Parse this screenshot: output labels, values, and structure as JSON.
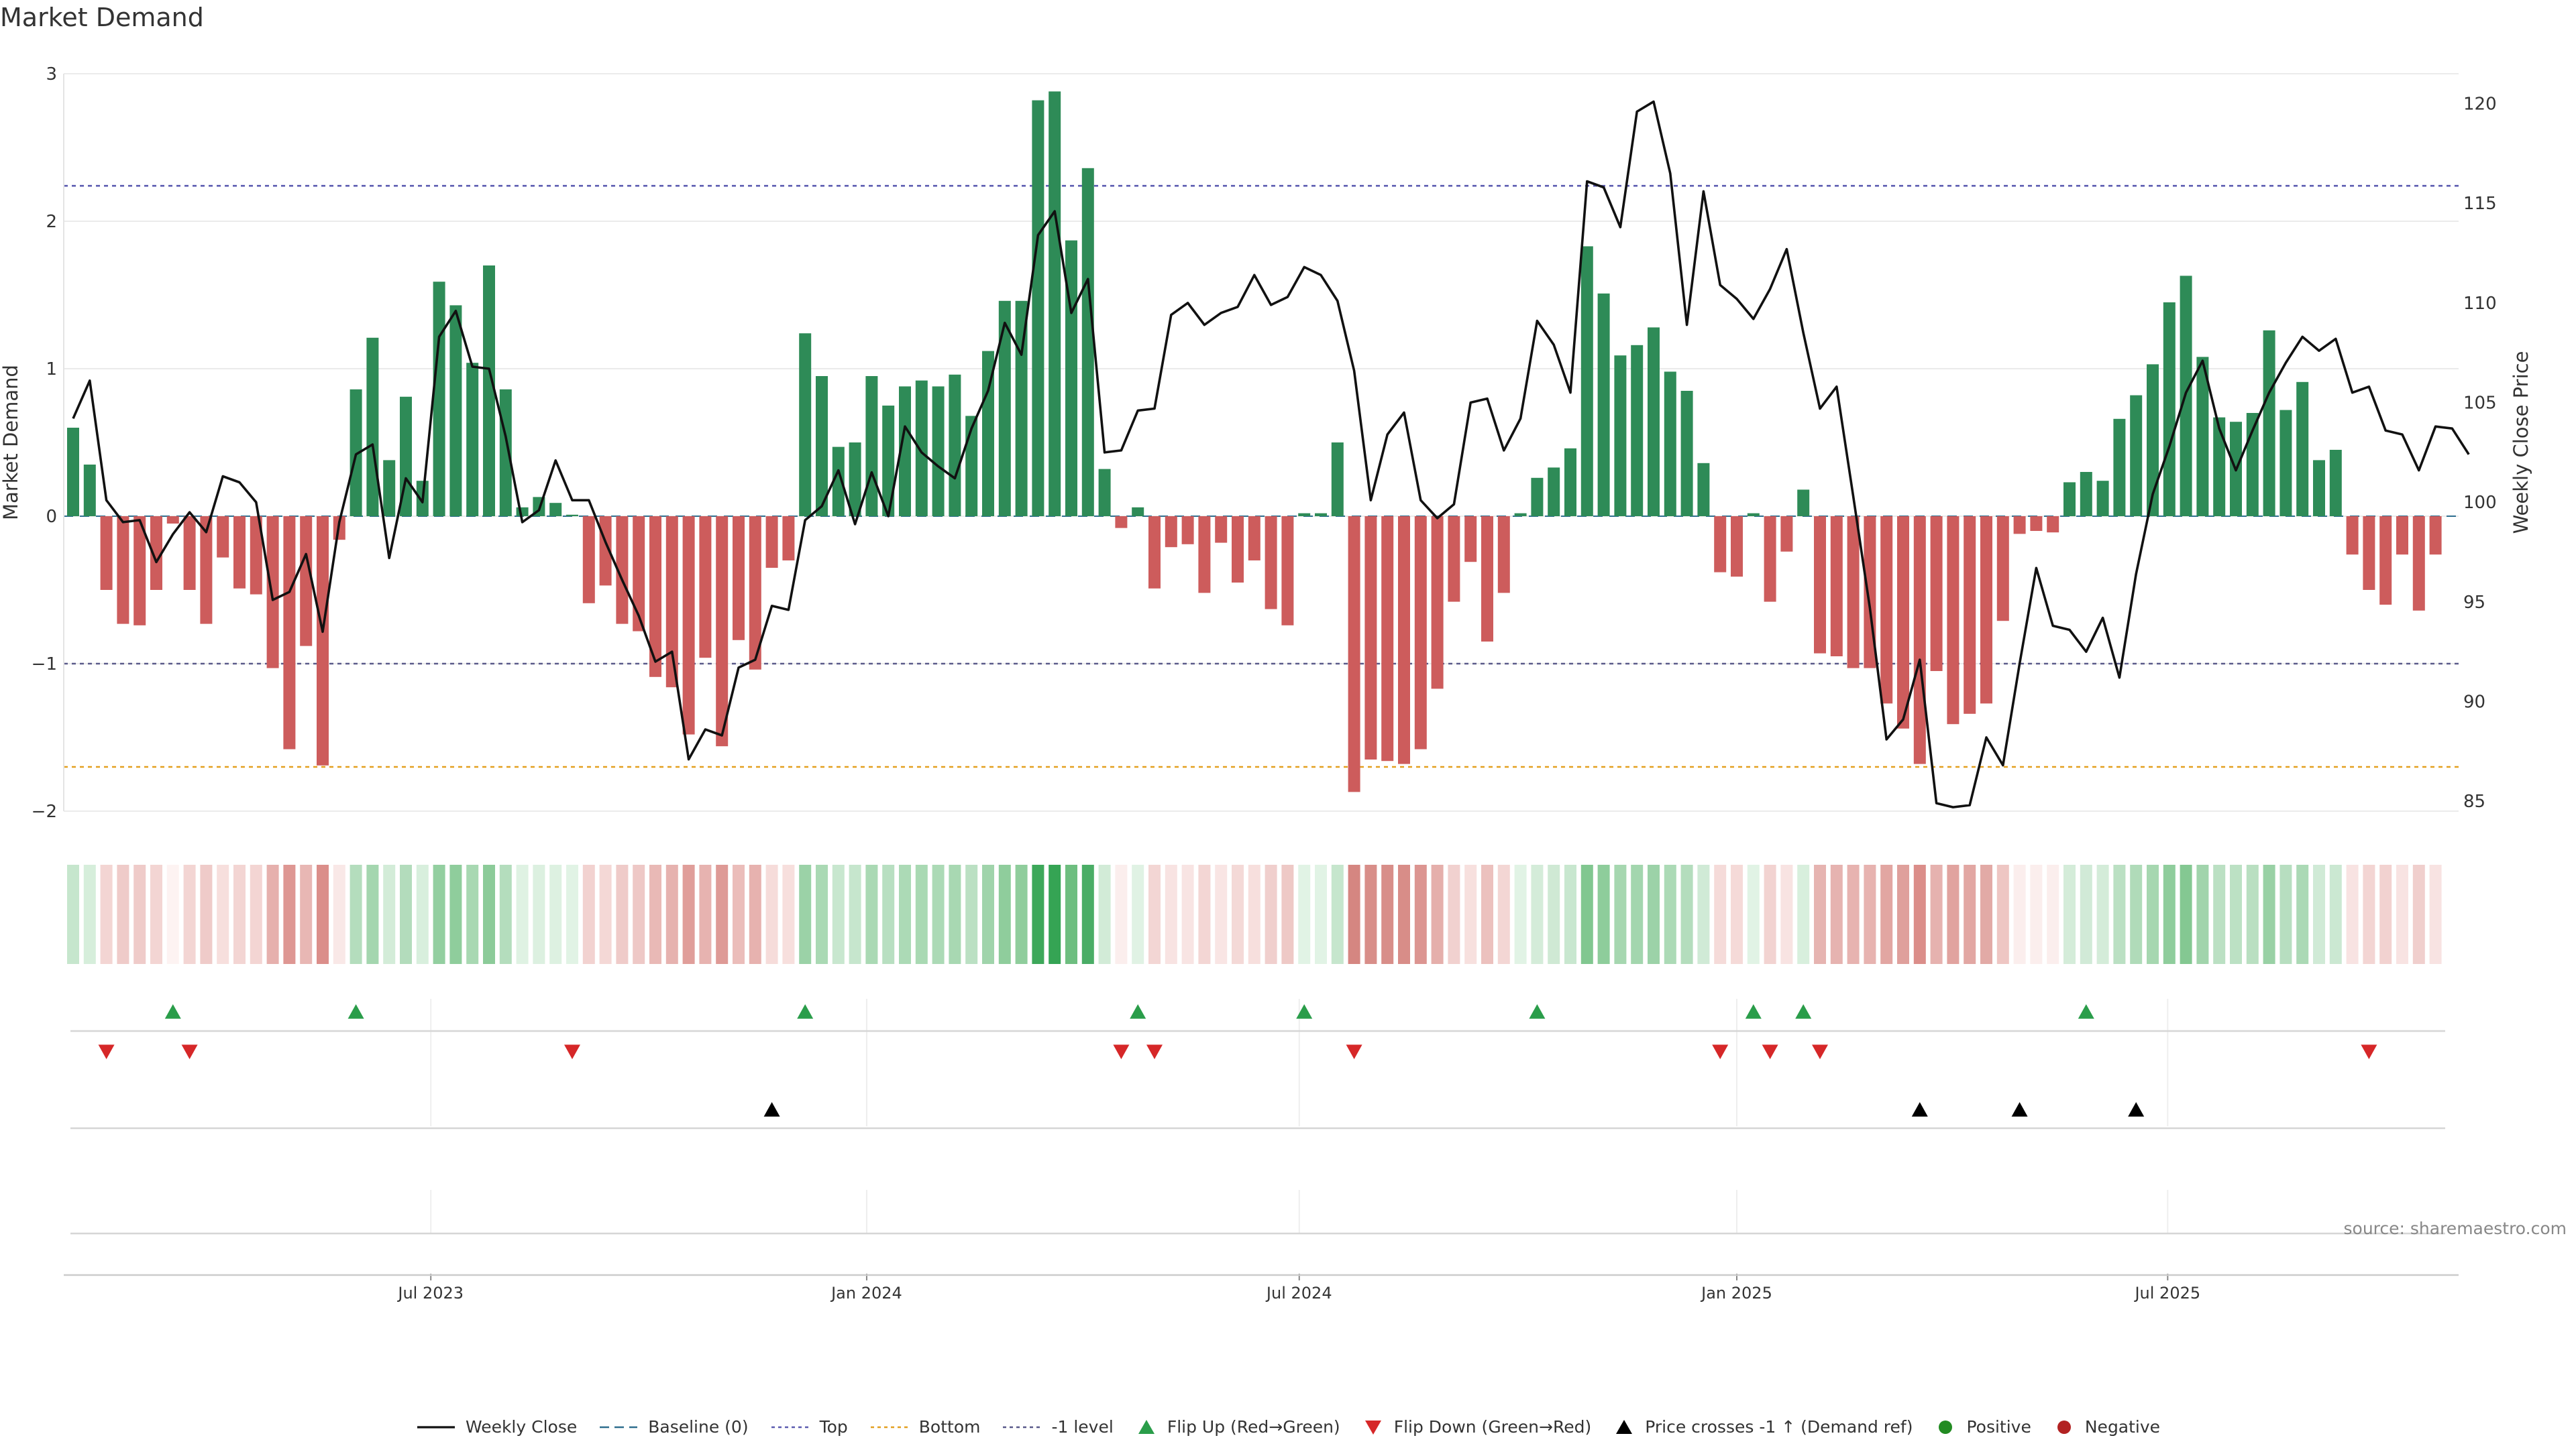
{
  "title": "Market Demand",
  "source": "source: sharemaestro.com",
  "colors": {
    "positive": "#2e8b57",
    "negative": "#cd5c5c",
    "price": "#111111",
    "top_line": "#5b5bb0",
    "bottom_line": "#e3a020",
    "minus1_line": "#5a5a8a",
    "flip_up": "#2a9d4a",
    "flip_down": "#d62728",
    "cross": "#000000",
    "positive_dot": "#228b22",
    "negative_dot": "#b22222"
  },
  "chart_data": {
    "type": "bar",
    "title": "Market Demand",
    "ylabel": "Market Demand",
    "y2label": "Weekly Close Price",
    "ylim": [
      -2.0,
      3.0
    ],
    "y2lim": [
      84.5,
      121.5
    ],
    "yticks": [
      3,
      2,
      1,
      0,
      -1,
      -2
    ],
    "ytick_labels": [
      "3",
      "2",
      "1",
      "0",
      "−1",
      "−2"
    ],
    "y2ticks": [
      120,
      115,
      110,
      105,
      100,
      95,
      90,
      85
    ],
    "y2tick_labels": [
      "120",
      "115",
      "110",
      "105",
      "100",
      "95",
      "90",
      "85"
    ],
    "reference_lines": {
      "top": 2.24,
      "bottom": -1.7,
      "minus_one": -1.0,
      "baseline": 0
    },
    "xticks": [
      {
        "label": "Jul 2023",
        "index": 21.5
      },
      {
        "label": "Jan 2024",
        "index": 47.7
      },
      {
        "label": "Jul 2024",
        "index": 73.7
      },
      {
        "label": "Jan 2025",
        "index": 100.0
      },
      {
        "label": "Jul 2025",
        "index": 125.9
      }
    ],
    "demand": [
      0.6,
      0.35,
      -0.5,
      -0.73,
      -0.74,
      -0.5,
      -0.05,
      -0.5,
      -0.73,
      -0.28,
      -0.49,
      -0.53,
      -1.03,
      -1.58,
      -0.88,
      -1.69,
      -0.16,
      0.86,
      1.21,
      0.38,
      0.81,
      0.24,
      1.59,
      1.43,
      1.04,
      1.7,
      0.86,
      0.06,
      0.13,
      0.09,
      0.01,
      -0.59,
      -0.47,
      -0.73,
      -0.78,
      -1.09,
      -1.16,
      -1.48,
      -0.96,
      -1.56,
      -0.84,
      -1.04,
      -0.35,
      -0.3,
      1.24,
      0.95,
      0.47,
      0.5,
      0.95,
      0.75,
      0.88,
      0.92,
      0.88,
      0.96,
      0.68,
      1.12,
      1.46,
      1.46,
      2.82,
      2.88,
      1.87,
      2.36,
      0.32,
      -0.08,
      0.06,
      -0.49,
      -0.21,
      -0.19,
      -0.52,
      -0.18,
      -0.45,
      -0.3,
      -0.63,
      -0.74,
      0.02,
      0.02,
      0.5,
      -1.87,
      -1.65,
      -1.66,
      -1.68,
      -1.58,
      -1.17,
      -0.58,
      -0.31,
      -0.85,
      -0.52,
      0.02,
      0.26,
      0.33,
      0.46,
      1.83,
      1.51,
      1.09,
      1.16,
      1.28,
      0.98,
      0.85,
      0.36,
      -0.38,
      -0.41,
      0.02,
      -0.58,
      -0.24,
      0.18,
      -0.93,
      -0.95,
      -1.03,
      -1.03,
      -1.27,
      -1.44,
      -1.68,
      -1.05,
      -1.41,
      -1.34,
      -1.27,
      -0.71,
      -0.12,
      -0.1,
      -0.11,
      0.23,
      0.3,
      0.24,
      0.66,
      0.82,
      1.03,
      1.45,
      1.63,
      1.08,
      0.67,
      0.64,
      0.7,
      1.26,
      0.72,
      0.91,
      0.38,
      0.45,
      -0.26,
      -0.5,
      -0.6,
      -0.26,
      -0.64,
      -0.26
    ],
    "price": [
      104.2,
      106.1,
      100.1,
      99.0,
      99.1,
      97.0,
      98.4,
      99.5,
      98.5,
      101.3,
      101.0,
      100.0,
      95.1,
      95.5,
      97.4,
      93.5,
      99.0,
      102.4,
      102.9,
      97.2,
      101.2,
      100.0,
      108.3,
      109.6,
      106.8,
      106.7,
      103.3,
      99.0,
      99.6,
      102.1,
      100.1,
      100.1,
      98.0,
      96.1,
      94.3,
      92.0,
      92.5,
      87.1,
      88.6,
      88.3,
      91.7,
      92.1,
      94.8,
      94.6,
      99.1,
      99.8,
      101.6,
      98.9,
      101.5,
      99.3,
      103.8,
      102.5,
      101.8,
      101.2,
      103.7,
      105.6,
      109.0,
      107.4,
      113.4,
      114.6,
      109.5,
      111.2,
      102.5,
      102.6,
      104.6,
      104.7,
      109.4,
      110.0,
      108.9,
      109.5,
      109.8,
      111.4,
      109.9,
      110.3,
      111.8,
      111.4,
      110.1,
      106.6,
      100.1,
      103.4,
      104.5,
      100.1,
      99.2,
      99.9,
      105.0,
      105.2,
      102.6,
      104.2,
      109.1,
      107.9,
      105.5,
      116.1,
      115.8,
      113.8,
      119.6,
      120.1,
      116.5,
      108.9,
      115.6,
      110.9,
      110.2,
      109.2,
      110.7,
      112.7,
      108.5,
      104.7,
      105.8,
      100.3,
      94.7,
      88.1,
      89.1,
      92.1,
      84.9,
      84.7,
      84.8,
      88.2,
      86.8,
      91.9,
      96.7,
      93.8,
      93.6,
      92.5,
      94.2,
      91.2,
      96.4,
      100.4,
      102.8,
      105.5,
      107.1,
      103.7,
      101.6,
      103.6,
      105.5,
      107.0,
      108.3,
      107.6,
      108.2,
      105.5,
      105.8,
      103.6,
      103.4,
      101.6,
      103.8,
      103.7,
      102.4
    ],
    "heat_colors": [
      "#c6e6cd",
      "#d6eedb",
      "#f3d5d3",
      "#efcbc9",
      "#efcbc9",
      "#f3d5d3",
      "#fdf3f2",
      "#f3d5d3",
      "#efcbc9",
      "#f7dfdd",
      "#f3d5d3",
      "#f3d5d3",
      "#e6b0ad",
      "#de9793",
      "#e8b7b4",
      "#db8e8a",
      "#f9e8e7",
      "#b4ddbd",
      "#a4d6af",
      "#d3ecd8",
      "#b3dcbc",
      "#d8efdd",
      "#93cfa0",
      "#8fcd9c",
      "#a8d8b2",
      "#8ccb99",
      "#b4ddbd",
      "#dff2e3",
      "#dcf0e0",
      "#ddf1e1",
      "#e1f3e5",
      "#f2d2d0",
      "#f4d8d6",
      "#efcbc9",
      "#eec8c6",
      "#e9b9b6",
      "#e6b2af",
      "#e09e9a",
      "#e7b3b0",
      "#de9a96",
      "#ebbdba",
      "#e7b2af",
      "#f6dcda",
      "#f7dfdd",
      "#9bd2a7",
      "#aad9b4",
      "#c8e7cf",
      "#c6e6cd",
      "#aad9b4",
      "#b8dfc1",
      "#acdab6",
      "#a9d9b3",
      "#acdab6",
      "#a8d8b2",
      "#bbe0c3",
      "#a0d4ab",
      "#8fcd9c",
      "#8fcd9c",
      "#3da85a",
      "#35a454",
      "#6ebe80",
      "#4aad66",
      "#d2ebd7",
      "#fbeeed",
      "#e0f2e4",
      "#f3d6d4",
      "#f8e3e2",
      "#f8e4e3",
      "#f3d6d4",
      "#f9e5e4",
      "#f4d9d7",
      "#f7dfdd",
      "#f0cfcd",
      "#eec9c6",
      "#e1f3e5",
      "#e1f3e5",
      "#c6e6cd",
      "#d58681",
      "#d88e89",
      "#d88e89",
      "#d88d88",
      "#dc9591",
      "#e5afab",
      "#f1d1cf",
      "#f7e0de",
      "#ecc1be",
      "#f3d6d4",
      "#e1f3e5",
      "#d4ecd9",
      "#cfe9d4",
      "#c8e7cf",
      "#81c790",
      "#8ecd9b",
      "#a6d7b0",
      "#a3d6ae",
      "#9cd2a8",
      "#acdab6",
      "#b4ddbd",
      "#d0ead6",
      "#f5dbd9",
      "#f5dad8",
      "#e1f3e5",
      "#f2d3d1",
      "#f8e3e2",
      "#d8efdd",
      "#e6b4b1",
      "#e6b3b0",
      "#e7b3b0",
      "#e7b3b0",
      "#e2a6a2",
      "#dfa09c",
      "#db8e8a",
      "#e6b2af",
      "#e1a39f",
      "#e2a7a3",
      "#e2aaa6",
      "#eec6c3",
      "#fbeeed",
      "#fbeeed",
      "#fbeeed",
      "#d4ecd9",
      "#d1ead7",
      "#d4ecd9",
      "#bbe0c3",
      "#b0dbb9",
      "#a6d7b0",
      "#8fcd9c",
      "#84c892",
      "#a1d4ac",
      "#bbe0c3",
      "#bce1c4",
      "#b9dfc1",
      "#99d1a5",
      "#b7dec0",
      "#abd9b5",
      "#d0ead6",
      "#cbe8d2",
      "#f8e3e2",
      "#f3d5d3",
      "#f2d2d0",
      "#f8e3e2",
      "#f0cfcd",
      "#f8e3e2"
    ],
    "flip_up_indices": [
      6,
      17,
      44,
      64,
      74,
      88,
      101,
      104,
      121
    ],
    "flip_down_indices": [
      2,
      7,
      30,
      63,
      65,
      77,
      99,
      102,
      105,
      138
    ],
    "cross_indices": [
      42,
      111,
      117,
      124
    ]
  },
  "legend": [
    {
      "label": "Weekly Close",
      "kind": "line",
      "color_key": "price",
      "dash": ""
    },
    {
      "label": "Baseline (0)",
      "kind": "line",
      "color_key": "price",
      "dash": "dash"
    },
    {
      "label": "Top",
      "kind": "line",
      "color_key": "top_line",
      "dash": "dot"
    },
    {
      "label": "Bottom",
      "kind": "line",
      "color_key": "bottom_line",
      "dash": "dot"
    },
    {
      "label": "-1 level",
      "kind": "line",
      "color_key": "minus1_line",
      "dash": "dot"
    },
    {
      "label": "Flip Up (Red→Green)",
      "kind": "tri-up",
      "color_key": "flip_up"
    },
    {
      "label": "Flip Down (Green→Red)",
      "kind": "tri-down",
      "color_key": "flip_down"
    },
    {
      "label": "Price crosses -1 ↑ (Demand ref)",
      "kind": "tri-up",
      "color_key": "cross"
    },
    {
      "label": "Positive",
      "kind": "dot",
      "color_key": "positive_dot"
    },
    {
      "label": "Negative",
      "kind": "dot",
      "color_key": "negative_dot"
    }
  ]
}
